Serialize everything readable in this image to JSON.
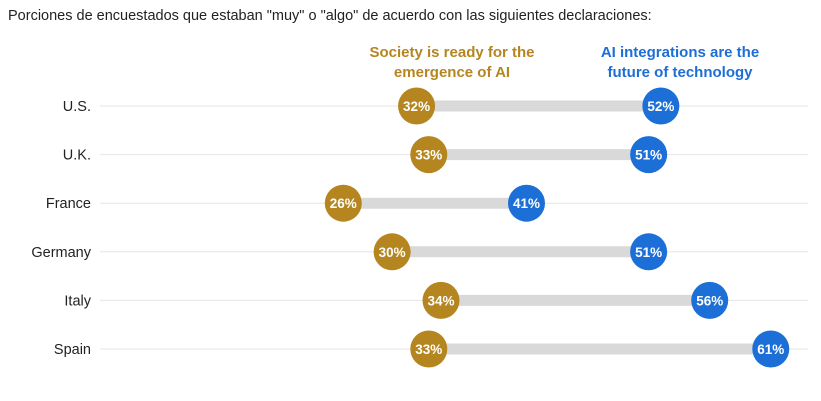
{
  "chart_data": {
    "type": "dumbbell",
    "title": "Porciones de encuestados que estaban \"muy\" o \"algo\" de acuerdo con las siguientes declaraciones:",
    "series": [
      {
        "name": "Society is ready for the emergence of AI",
        "color": "#b5861f",
        "values": [
          32,
          33,
          26,
          30,
          34,
          33
        ]
      },
      {
        "name": "AI integrations are the future of technology",
        "color": "#1b6fd6",
        "values": [
          52,
          51,
          41,
          51,
          56,
          61
        ]
      }
    ],
    "categories": [
      "U.S.",
      "U.K.",
      "France",
      "Germany",
      "Italy",
      "Spain"
    ],
    "value_suffix": "%",
    "xlim": [
      20,
      62
    ],
    "connector_color": "#d9d9d9",
    "gridline_color": "#e6e6e6"
  },
  "legend": {
    "series_a_line1": "Society is ready for the",
    "series_a_line2": "emergence of AI",
    "series_b_line1": "AI integrations are the",
    "series_b_line2": "future of technology"
  }
}
